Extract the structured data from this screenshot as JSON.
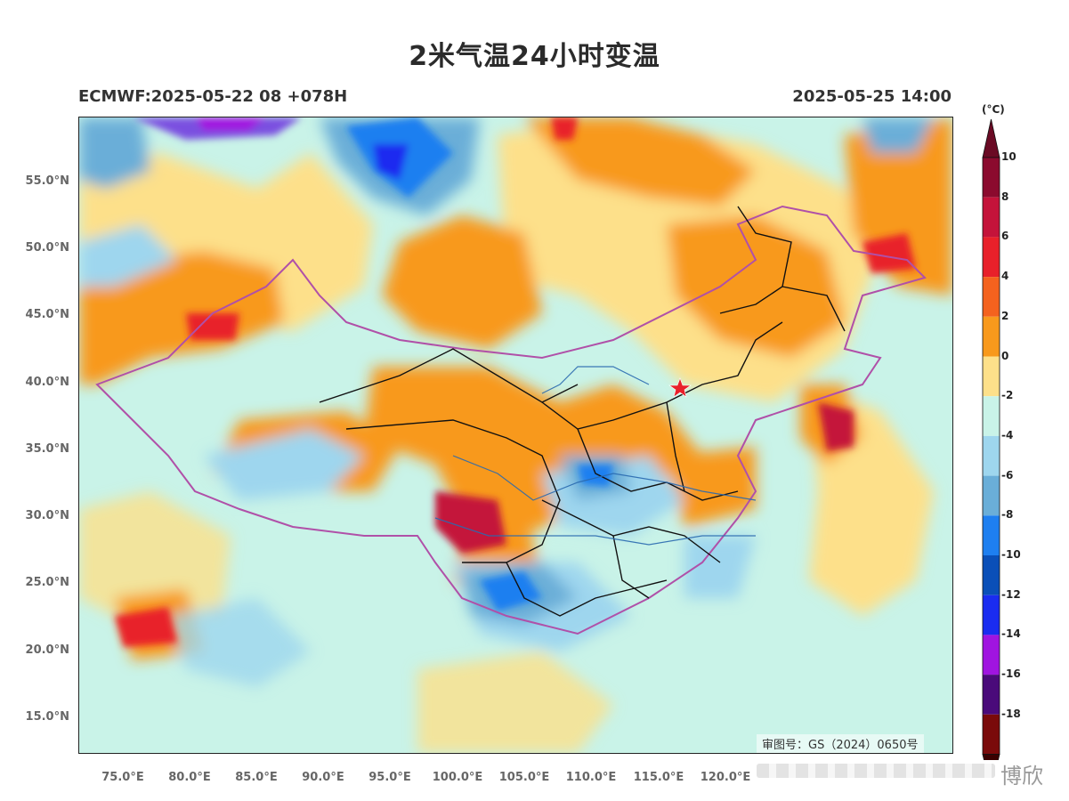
{
  "header": {
    "title": "2米气温24小时变温",
    "model_run": "ECMWF:2025-05-22 08 +078H",
    "valid_time": "2025-05-25 14:00"
  },
  "axes": {
    "lat_labels": [
      "55.0°N",
      "50.0°N",
      "45.0°N",
      "40.0°N",
      "35.0°N",
      "30.0°N",
      "25.0°N",
      "20.0°N",
      "15.0°N"
    ],
    "lon_labels": [
      "75.0°E",
      "80.0°E",
      "85.0°E",
      "90.0°E",
      "95.0°E",
      "100.0°E",
      "105.0°E",
      "110.0°E",
      "115.0°E",
      "120.0°E"
    ]
  },
  "colorbar": {
    "unit": "(°C)",
    "labels": [
      "10",
      "8",
      "6",
      "4",
      "2",
      "0",
      "-2",
      "-4",
      "-6",
      "-8",
      "-10",
      "-12",
      "-14",
      "-16",
      "-18"
    ],
    "colors_top_to_bottom": [
      "#8b0a2e",
      "#c4133a",
      "#e8202a",
      "#f4621e",
      "#f8991c",
      "#fde08a",
      "#c9f3e8",
      "#9ed6ee",
      "#6aaed8",
      "#1e7ff0",
      "#0a4fb8",
      "#1a2cf0",
      "#a014e0",
      "#4a0a7a",
      "#7a0a0a"
    ],
    "top_arrow_color": "#6a0a24",
    "bottom_arrow_color": "#3a0000"
  },
  "map": {
    "approval_number": "审图号：GS（2024）0650号",
    "capital_marker_color": "#e8202a",
    "border_color": "#b050a8",
    "province_color": "#111111",
    "river_color": "#2a6ab0"
  },
  "watermark": "博欣"
}
